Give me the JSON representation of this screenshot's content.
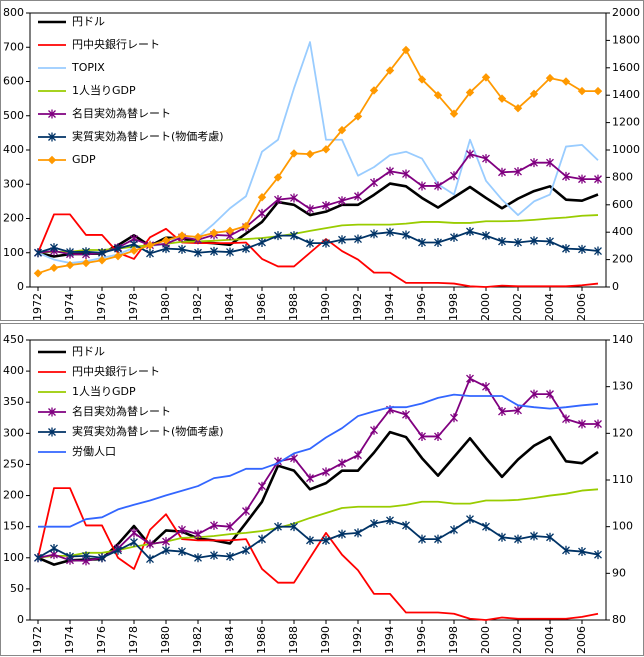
{
  "chart_data": [
    {
      "type": "line",
      "x": [
        1972,
        1973,
        1974,
        1975,
        1976,
        1977,
        1978,
        1979,
        1980,
        1981,
        1982,
        1983,
        1984,
        1985,
        1986,
        1987,
        1988,
        1989,
        1990,
        1991,
        1992,
        1993,
        1994,
        1995,
        1996,
        1997,
        1998,
        1999,
        2000,
        2001,
        2002,
        2003,
        2004,
        2005,
        2006,
        2007
      ],
      "xlim": [
        1971.5,
        2007.5
      ],
      "xticks": [
        1972,
        1974,
        1976,
        1978,
        1980,
        1982,
        1984,
        1986,
        1988,
        1990,
        1992,
        1994,
        1996,
        1998,
        2000,
        2002,
        2004,
        2006
      ],
      "ylim": [
        0,
        800
      ],
      "yticks": [
        0,
        100,
        200,
        300,
        400,
        500,
        600,
        700,
        800
      ],
      "y2lim": [
        0,
        2000
      ],
      "y2ticks": [
        0,
        200,
        400,
        600,
        800,
        1000,
        1200,
        1400,
        1600,
        1800,
        2000
      ],
      "grid": false,
      "legend": "upper left",
      "series": [
        {
          "name": "円ドル",
          "color": "#000000",
          "values": [
            100,
            89,
            96,
            97,
            98,
            122,
            151,
            120,
            144,
            142,
            131,
            128,
            123,
            156,
            190,
            248,
            240,
            210,
            220,
            240,
            240,
            269,
            302,
            294,
            260,
            232,
            262,
            292,
            260,
            230,
            258,
            280,
            294,
            255,
            252,
            270
          ]
        },
        {
          "name": "円中央銀行レート",
          "color": "#ff0000",
          "values": [
            100,
            212,
            212,
            152,
            152,
            100,
            82,
            145,
            170,
            130,
            128,
            128,
            128,
            130,
            82,
            60,
            60,
            100,
            140,
            105,
            80,
            42,
            42,
            12,
            12,
            12,
            10,
            2,
            0,
            4,
            2,
            2,
            2,
            2,
            5,
            10
          ]
        },
        {
          "name": "TOPIX",
          "color": "#99ccff",
          "values": [
            100,
            80,
            70,
            75,
            85,
            95,
            115,
            120,
            125,
            150,
            145,
            185,
            230,
            265,
            395,
            430,
            580,
            715,
            430,
            430,
            325,
            350,
            385,
            395,
            375,
            300,
            270,
            430,
            310,
            255,
            210,
            250,
            270,
            410,
            415,
            370
          ]
        },
        {
          "name": "1人当りGDP",
          "color": "#99cc00",
          "values": [
            100,
            103,
            103,
            108,
            108,
            112,
            118,
            122,
            126,
            132,
            133,
            135,
            138,
            140,
            143,
            148,
            155,
            164,
            172,
            180,
            182,
            182,
            182,
            185,
            190,
            190,
            187,
            187,
            192,
            192,
            193,
            196,
            200,
            203,
            208,
            210
          ]
        },
        {
          "name": "名目実効為替レート",
          "color": "#800080",
          "marker": "star",
          "values": [
            100,
            105,
            96,
            95,
            100,
            115,
            140,
            122,
            126,
            145,
            138,
            152,
            150,
            175,
            215,
            255,
            260,
            228,
            238,
            252,
            265,
            305,
            338,
            330,
            295,
            295,
            325,
            388,
            375,
            335,
            337,
            363,
            363,
            323,
            315,
            315
          ]
        },
        {
          "name": "実質実効為替レート(物価考慮)",
          "color": "#003366",
          "marker": "star",
          "values": [
            100,
            115,
            102,
            103,
            100,
            112,
            125,
            98,
            112,
            110,
            100,
            104,
            102,
            112,
            130,
            150,
            150,
            128,
            128,
            138,
            140,
            155,
            160,
            152,
            130,
            130,
            145,
            162,
            150,
            133,
            130,
            135,
            133,
            112,
            110,
            105
          ]
        },
        {
          "name": "GDP",
          "color": "#ff9900",
          "marker": "diamond",
          "axis": "y2",
          "values": [
            100,
            140,
            160,
            175,
            195,
            225,
            265,
            305,
            340,
            375,
            365,
            395,
            410,
            445,
            655,
            800,
            975,
            970,
            1005,
            1145,
            1245,
            1435,
            1580,
            1730,
            1515,
            1400,
            1265,
            1420,
            1530,
            1375,
            1305,
            1410,
            1525,
            1500,
            1430,
            1430
          ]
        }
      ]
    },
    {
      "type": "line",
      "x": [
        1972,
        1973,
        1974,
        1975,
        1976,
        1977,
        1978,
        1979,
        1980,
        1981,
        1982,
        1983,
        1984,
        1985,
        1986,
        1987,
        1988,
        1989,
        1990,
        1991,
        1992,
        1993,
        1994,
        1995,
        1996,
        1997,
        1998,
        1999,
        2000,
        2001,
        2002,
        2003,
        2004,
        2005,
        2006,
        2007
      ],
      "xlim": [
        1971.5,
        2007.5
      ],
      "xticks": [
        1972,
        1974,
        1976,
        1978,
        1980,
        1982,
        1984,
        1986,
        1988,
        1990,
        1992,
        1994,
        1996,
        1998,
        2000,
        2002,
        2004,
        2006
      ],
      "ylim": [
        0,
        450
      ],
      "yticks": [
        0,
        50,
        100,
        150,
        200,
        250,
        300,
        350,
        400,
        450
      ],
      "y2lim": [
        80,
        140
      ],
      "y2ticks": [
        80,
        90,
        100,
        110,
        120,
        130,
        140
      ],
      "grid": false,
      "legend": "upper left",
      "series": [
        {
          "name": "円ドル",
          "color": "#000000",
          "values": [
            100,
            89,
            96,
            97,
            98,
            122,
            151,
            120,
            144,
            142,
            131,
            128,
            123,
            156,
            190,
            248,
            240,
            210,
            220,
            240,
            240,
            269,
            302,
            294,
            260,
            232,
            262,
            292,
            260,
            230,
            258,
            280,
            294,
            255,
            252,
            270
          ]
        },
        {
          "name": "円中央銀行レート",
          "color": "#ff0000",
          "values": [
            100,
            212,
            212,
            152,
            152,
            100,
            82,
            145,
            170,
            130,
            128,
            128,
            128,
            130,
            82,
            60,
            60,
            100,
            140,
            105,
            80,
            42,
            42,
            12,
            12,
            12,
            10,
            2,
            0,
            4,
            2,
            2,
            2,
            2,
            5,
            10
          ]
        },
        {
          "name": "1人当りGDP",
          "color": "#99cc00",
          "values": [
            100,
            103,
            103,
            108,
            108,
            112,
            118,
            122,
            126,
            132,
            133,
            135,
            138,
            140,
            143,
            148,
            155,
            164,
            172,
            180,
            182,
            182,
            182,
            185,
            190,
            190,
            187,
            187,
            192,
            192,
            193,
            196,
            200,
            203,
            208,
            210
          ]
        },
        {
          "name": "名目実効為替レート",
          "color": "#800080",
          "marker": "star",
          "values": [
            100,
            105,
            96,
            95,
            100,
            115,
            140,
            122,
            126,
            145,
            138,
            152,
            150,
            175,
            215,
            255,
            260,
            228,
            238,
            252,
            265,
            305,
            338,
            330,
            295,
            295,
            325,
            388,
            375,
            335,
            337,
            363,
            363,
            323,
            315,
            315
          ]
        },
        {
          "name": "実質実効為替レート(物価考慮)",
          "color": "#003366",
          "marker": "star",
          "values": [
            100,
            115,
            102,
            103,
            100,
            112,
            125,
            98,
            112,
            110,
            100,
            104,
            102,
            112,
            130,
            150,
            150,
            128,
            128,
            138,
            140,
            155,
            160,
            152,
            130,
            130,
            145,
            162,
            150,
            133,
            130,
            135,
            133,
            112,
            110,
            105
          ]
        },
        {
          "name": "労働人口",
          "color": "#3366ff",
          "axis": "y2",
          "values": [
            100,
            100,
            100,
            101.6,
            102,
            103.7,
            104.7,
            105.6,
            106.7,
            107.7,
            108.7,
            110.4,
            110.9,
            112.4,
            112.4,
            113.6,
            115.7,
            116.7,
            119.1,
            121.1,
            123.7,
            124.7,
            125.6,
            125.6,
            126.4,
            127.6,
            128.3,
            128,
            128,
            128,
            126,
            125.6,
            125.3,
            125.6,
            126,
            126.3
          ]
        }
      ]
    }
  ]
}
